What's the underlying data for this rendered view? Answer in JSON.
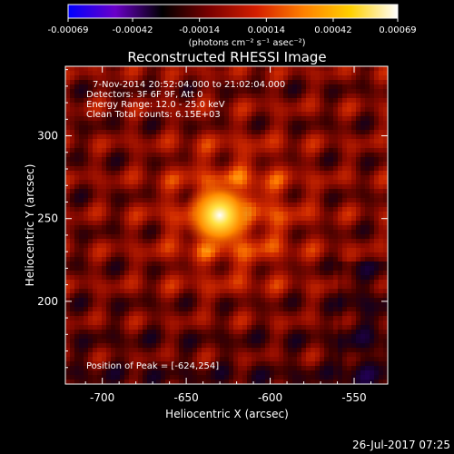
{
  "chart_data": {
    "type": "heatmap",
    "title": "Reconstructed RHESSI Image",
    "colorbar": {
      "ticks": [
        "-0.00069",
        "-0.00042",
        "-0.00014",
        "0.00014",
        "0.00042",
        "0.00069"
      ],
      "range": [
        -0.00069,
        0.00069
      ],
      "unit_label": "(photons cm⁻² s⁻¹ asec⁻²)",
      "colormap": [
        "#0000ff",
        "#6a00c8",
        "#000000",
        "#7a0000",
        "#d41e00",
        "#ff8000",
        "#ffd000",
        "#ffffff"
      ]
    },
    "annotations": [
      "7-Nov-2014 20:52:04.000 to 21:02:04.000",
      "Detectors: 3F 6F 9F, Att 0",
      "Energy Range: 12.0 - 25.0 keV",
      "Clean     Total counts: 6.15E+03"
    ],
    "peak_label": "Position of Peak = [-624,254]",
    "peak": {
      "x": -624,
      "y": 254
    },
    "xlabel": "Heliocentric X (arcsec)",
    "ylabel": "Heliocentric Y (arcsec)",
    "xlim": [
      -722,
      -530
    ],
    "ylim": [
      150,
      342
    ],
    "xticks": [
      "-700",
      "-650",
      "-600",
      "-550"
    ],
    "yticks": [
      "200",
      "250",
      "300"
    ],
    "grid": false
  },
  "footer": {
    "timestamp": "26-Jul-2017 07:25"
  }
}
